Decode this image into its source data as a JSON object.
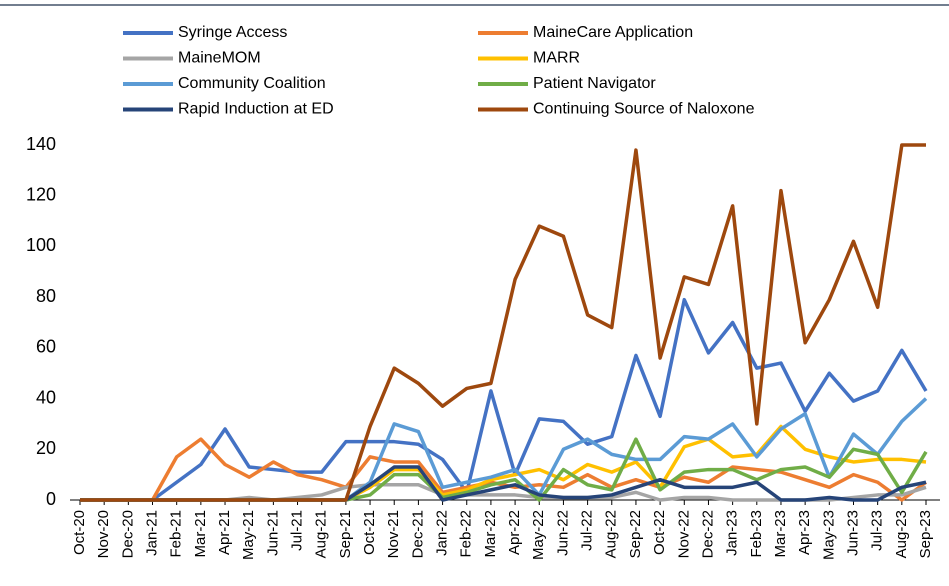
{
  "chart_data": {
    "type": "line",
    "categories": [
      "Oct-20",
      "Nov-20",
      "Dec-20",
      "Jan-21",
      "Feb-21",
      "Mar-21",
      "Apr-21",
      "May-21",
      "Jun-21",
      "Jul-21",
      "Aug-21",
      "Sep-21",
      "Oct-21",
      "Nov-21",
      "Dec-21",
      "Jan-22",
      "Feb-22",
      "Mar-22",
      "Apr-22",
      "May-22",
      "Jun-22",
      "Jul-22",
      "Aug-22",
      "Sep-22",
      "Oct-22",
      "Nov-22",
      "Dec-22",
      "Jan-23",
      "Feb-23",
      "Mar-23",
      "Apr-23",
      "May-23",
      "Jun-23",
      "Jul-23",
      "Aug-23",
      "Sep-23"
    ],
    "series": [
      {
        "name": "Syringe Access",
        "color": "#4472c4",
        "values": [
          0,
          0,
          0,
          0,
          7,
          14,
          28,
          13,
          12,
          11,
          11,
          23,
          23,
          23,
          22,
          16,
          3,
          43,
          10,
          32,
          31,
          22,
          25,
          57,
          33,
          79,
          58,
          70,
          52,
          54,
          35,
          50,
          39,
          43,
          59,
          43
        ]
      },
      {
        "name": "MaineCare Application",
        "color": "#ed7d31",
        "values": [
          0,
          0,
          0,
          0,
          17,
          24,
          14,
          9,
          15,
          10,
          8,
          5,
          17,
          15,
          15,
          3,
          5,
          7,
          5,
          6,
          5,
          10,
          5,
          8,
          5,
          9,
          7,
          13,
          12,
          11,
          8,
          5,
          10,
          7,
          0,
          7
        ]
      },
      {
        "name": "MaineMOM",
        "color": "#a5a5a5",
        "values": [
          0,
          0,
          0,
          0,
          0,
          0,
          0,
          1,
          0,
          1,
          2,
          5,
          6,
          6,
          6,
          2,
          2,
          2,
          2,
          1,
          1,
          1,
          1,
          3,
          0,
          1,
          1,
          0,
          0,
          0,
          0,
          0,
          1,
          2,
          2,
          5
        ]
      },
      {
        "name": "MARR",
        "color": "#ffc000",
        "values": [
          0,
          0,
          0,
          0,
          0,
          0,
          0,
          0,
          0,
          0,
          0,
          0,
          5,
          12,
          12,
          2,
          4,
          8,
          10,
          12,
          8,
          14,
          11,
          15,
          5,
          21,
          24,
          17,
          18,
          29,
          20,
          17,
          15,
          16,
          16,
          15
        ]
      },
      {
        "name": "Community Coalition",
        "color": "#5b9bd5",
        "values": [
          0,
          0,
          0,
          0,
          0,
          0,
          0,
          0,
          0,
          0,
          0,
          0,
          7,
          30,
          27,
          5,
          7,
          9,
          12,
          2,
          20,
          24,
          18,
          16,
          16,
          25,
          24,
          30,
          17,
          28,
          34,
          9,
          26,
          18,
          31,
          40
        ]
      },
      {
        "name": "Patient Navigator",
        "color": "#70ad47",
        "values": [
          0,
          0,
          0,
          0,
          0,
          0,
          0,
          0,
          0,
          0,
          0,
          0,
          2,
          10,
          10,
          1,
          3,
          6,
          8,
          0,
          12,
          6,
          4,
          24,
          4,
          11,
          12,
          12,
          8,
          12,
          13,
          9,
          20,
          18,
          3,
          19
        ]
      },
      {
        "name": "Rapid Induction at ED",
        "color": "#264478",
        "values": [
          0,
          0,
          0,
          0,
          0,
          0,
          0,
          0,
          0,
          0,
          0,
          0,
          6,
          13,
          13,
          0,
          2,
          4,
          6,
          2,
          1,
          1,
          2,
          5,
          8,
          5,
          5,
          5,
          7,
          0,
          0,
          1,
          0,
          0,
          5,
          7
        ]
      },
      {
        "name": "Continuing Source of Naloxone",
        "color": "#9e480e",
        "values": [
          0,
          0,
          0,
          0,
          0,
          0,
          0,
          0,
          0,
          0,
          0,
          0,
          29,
          52,
          46,
          37,
          44,
          46,
          87,
          108,
          104,
          73,
          68,
          138,
          56,
          88,
          85,
          116,
          30,
          122,
          62,
          79,
          102,
          76,
          140,
          140
        ]
      }
    ],
    "ylim": [
      0,
      140
    ],
    "yticks": [
      0,
      20,
      40,
      60,
      80,
      100,
      120,
      140
    ],
    "grid": false
  }
}
